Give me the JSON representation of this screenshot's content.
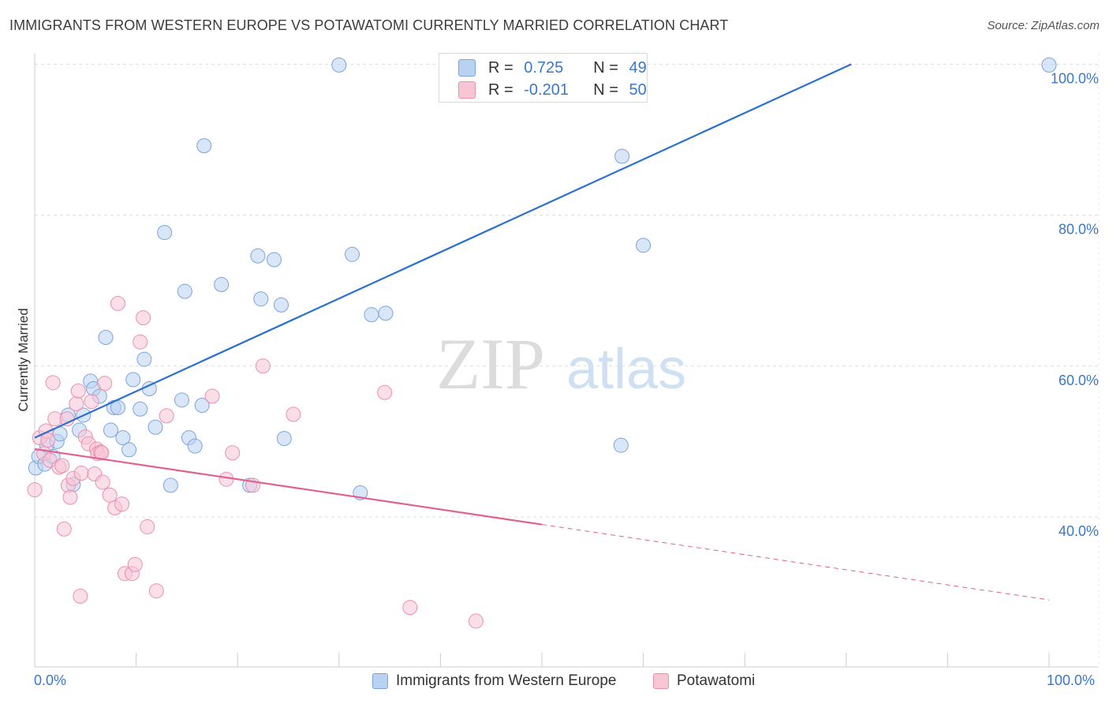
{
  "title": "IMMIGRANTS FROM WESTERN EUROPE VS POTAWATOMI CURRENTLY MARRIED CORRELATION CHART",
  "source": "Source: ZipAtlas.com",
  "watermark": {
    "zip": "ZIP",
    "atlas": "atlas"
  },
  "legend_inset": {
    "rows": [
      {
        "r_label": "R =",
        "r_value": "0.725",
        "n_label": "N =",
        "n_value": "49"
      },
      {
        "r_label": "R =",
        "r_value": "-0.201",
        "n_label": "N =",
        "n_value": "50"
      }
    ]
  },
  "colors": {
    "blue_fill": "#b9d1f2",
    "blue_stroke": "#7aa4dc",
    "blue_line": "#2b6fcf",
    "pink_fill": "#f8c5d5",
    "pink_stroke": "#eb90ad",
    "pink_line": "#e0608f",
    "axis_text": "#3a78c9",
    "grid": "#dddddd"
  },
  "chart_data": {
    "type": "scatter",
    "title": "IMMIGRANTS FROM WESTERN EUROPE VS POTAWATOMI CURRENTLY MARRIED CORRELATION CHART",
    "xlabel": "",
    "ylabel": "Currently Married",
    "xlim": [
      0,
      100
    ],
    "ylim": [
      20,
      101
    ],
    "x_tick_labels": [
      "0.0%",
      "100.0%"
    ],
    "y_ticks": [
      40,
      60,
      80,
      100
    ],
    "y_tick_labels": [
      "40.0%",
      "60.0%",
      "80.0%",
      "100.0%"
    ],
    "grid": true,
    "legend_position": "bottom-center",
    "series": [
      {
        "name": "Immigrants from Western Europe",
        "color": "#b9d1f2",
        "trend": {
          "x": [
            0,
            80.5
          ],
          "y": [
            50.5,
            100.0
          ]
        },
        "points": [
          [
            0.1,
            46.5
          ],
          [
            0.4,
            48.0
          ],
          [
            1.0,
            47.0
          ],
          [
            1.2,
            49.5
          ],
          [
            1.8,
            48.0
          ],
          [
            2.2,
            50.0
          ],
          [
            2.5,
            51.0
          ],
          [
            3.3,
            53.5
          ],
          [
            3.8,
            44.3
          ],
          [
            4.4,
            51.5
          ],
          [
            4.8,
            53.5
          ],
          [
            5.5,
            58.0
          ],
          [
            5.8,
            57.0
          ],
          [
            6.4,
            56.0
          ],
          [
            7.0,
            63.8
          ],
          [
            7.5,
            51.5
          ],
          [
            7.8,
            54.5
          ],
          [
            8.2,
            54.5
          ],
          [
            8.7,
            50.5
          ],
          [
            9.3,
            48.9
          ],
          [
            9.7,
            58.2
          ],
          [
            10.4,
            54.3
          ],
          [
            10.8,
            60.9
          ],
          [
            11.3,
            57.0
          ],
          [
            11.9,
            51.9
          ],
          [
            12.8,
            77.7
          ],
          [
            13.4,
            44.2
          ],
          [
            14.5,
            55.5
          ],
          [
            14.8,
            69.9
          ],
          [
            15.2,
            50.5
          ],
          [
            15.8,
            49.4
          ],
          [
            16.5,
            54.8
          ],
          [
            16.7,
            89.2
          ],
          [
            18.4,
            70.8
          ],
          [
            21.2,
            44.2
          ],
          [
            22.0,
            74.6
          ],
          [
            22.3,
            68.9
          ],
          [
            23.6,
            74.1
          ],
          [
            24.3,
            68.1
          ],
          [
            24.6,
            50.4
          ],
          [
            30.0,
            99.9
          ],
          [
            31.3,
            74.8
          ],
          [
            32.1,
            43.2
          ],
          [
            33.2,
            66.8
          ],
          [
            34.6,
            67.0
          ],
          [
            57.8,
            49.5
          ],
          [
            57.9,
            87.8
          ],
          [
            60.0,
            76.0
          ],
          [
            100.0,
            99.9
          ]
        ]
      },
      {
        "name": "Potawatomi",
        "color": "#f8c5d5",
        "trend": {
          "x": [
            0,
            100
          ],
          "y": [
            49.0,
            29.0
          ],
          "solid_until_x": 50
        },
        "points": [
          [
            0.0,
            43.6
          ],
          [
            0.5,
            50.5
          ],
          [
            0.9,
            48.4
          ],
          [
            1.1,
            51.4
          ],
          [
            1.3,
            50.2
          ],
          [
            1.5,
            47.5
          ],
          [
            1.8,
            57.8
          ],
          [
            2.0,
            53.0
          ],
          [
            2.4,
            46.6
          ],
          [
            2.7,
            46.8
          ],
          [
            2.9,
            38.4
          ],
          [
            3.2,
            53.0
          ],
          [
            3.3,
            44.2
          ],
          [
            3.5,
            42.6
          ],
          [
            3.8,
            45.1
          ],
          [
            4.1,
            55.0
          ],
          [
            4.3,
            56.7
          ],
          [
            4.5,
            29.5
          ],
          [
            4.6,
            45.8
          ],
          [
            5.0,
            50.6
          ],
          [
            5.3,
            49.7
          ],
          [
            5.6,
            55.3
          ],
          [
            5.9,
            45.7
          ],
          [
            6.1,
            49.0
          ],
          [
            6.2,
            48.4
          ],
          [
            6.5,
            48.6
          ],
          [
            6.6,
            48.5
          ],
          [
            6.7,
            44.6
          ],
          [
            6.9,
            57.7
          ],
          [
            7.4,
            42.9
          ],
          [
            7.9,
            41.2
          ],
          [
            8.2,
            68.3
          ],
          [
            8.6,
            41.7
          ],
          [
            8.9,
            32.5
          ],
          [
            9.6,
            32.5
          ],
          [
            9.9,
            33.7
          ],
          [
            10.4,
            63.2
          ],
          [
            10.7,
            66.4
          ],
          [
            11.1,
            38.7
          ],
          [
            12.0,
            30.2
          ],
          [
            13.0,
            53.4
          ],
          [
            17.5,
            56.0
          ],
          [
            18.9,
            45.0
          ],
          [
            19.5,
            48.5
          ],
          [
            21.5,
            44.2
          ],
          [
            22.5,
            60.0
          ],
          [
            25.5,
            53.6
          ],
          [
            34.5,
            56.5
          ],
          [
            37.0,
            28.0
          ],
          [
            43.5,
            26.2
          ]
        ]
      }
    ]
  },
  "axis": {
    "x_left": "0.0%",
    "x_right": "100.0%"
  }
}
